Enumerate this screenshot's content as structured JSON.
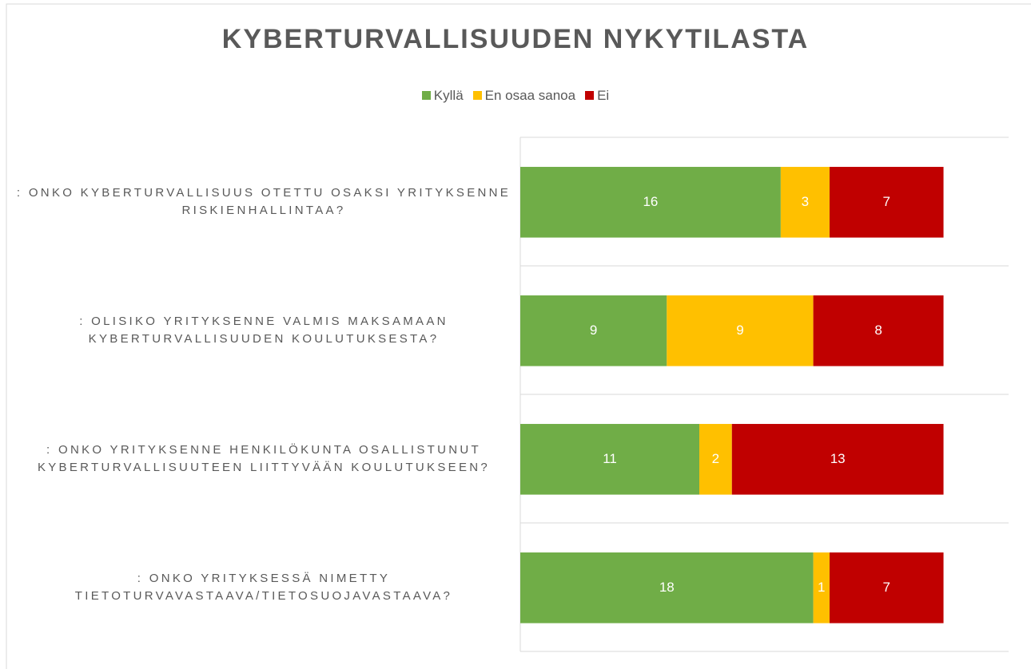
{
  "chart_data": {
    "type": "stacked_barh",
    "title": "KYBERTURVALLISUUDEN NYKYTILASTA",
    "categories": [
      ": ONKO KYBERTURVALLISUUS OTETTU OSAKSI YRITYKSENNE RISKIENHALLINTAA?",
      ": OLISIKO YRITYKSENNE VALMIS MAKSAMAAN KYBERTURVALLISUUDEN KOULUTUKSESTA?",
      ": ONKO YRITYKSENNE HENKILÖKUNTA OSALLISTUNUT KYBERTURVALLISUUTEEN LIITTYVÄÄN KOULUTUKSEEN?",
      ": ONKO YRITYKSESSÄ NIMETTY TIETOTURVAVASTAAVA/TIETOSUOJAVASTAAVA?"
    ],
    "series": [
      {
        "name": "Kyllä",
        "color": "#70ad47",
        "values": [
          16,
          9,
          11,
          18
        ]
      },
      {
        "name": "En osaa sanoa",
        "color": "#ffc000",
        "values": [
          3,
          9,
          2,
          1
        ]
      },
      {
        "name": "Ei",
        "color": "#c00000",
        "values": [
          7,
          8,
          13,
          7
        ]
      }
    ],
    "xlim": [
      0,
      30
    ],
    "legend": "top"
  }
}
